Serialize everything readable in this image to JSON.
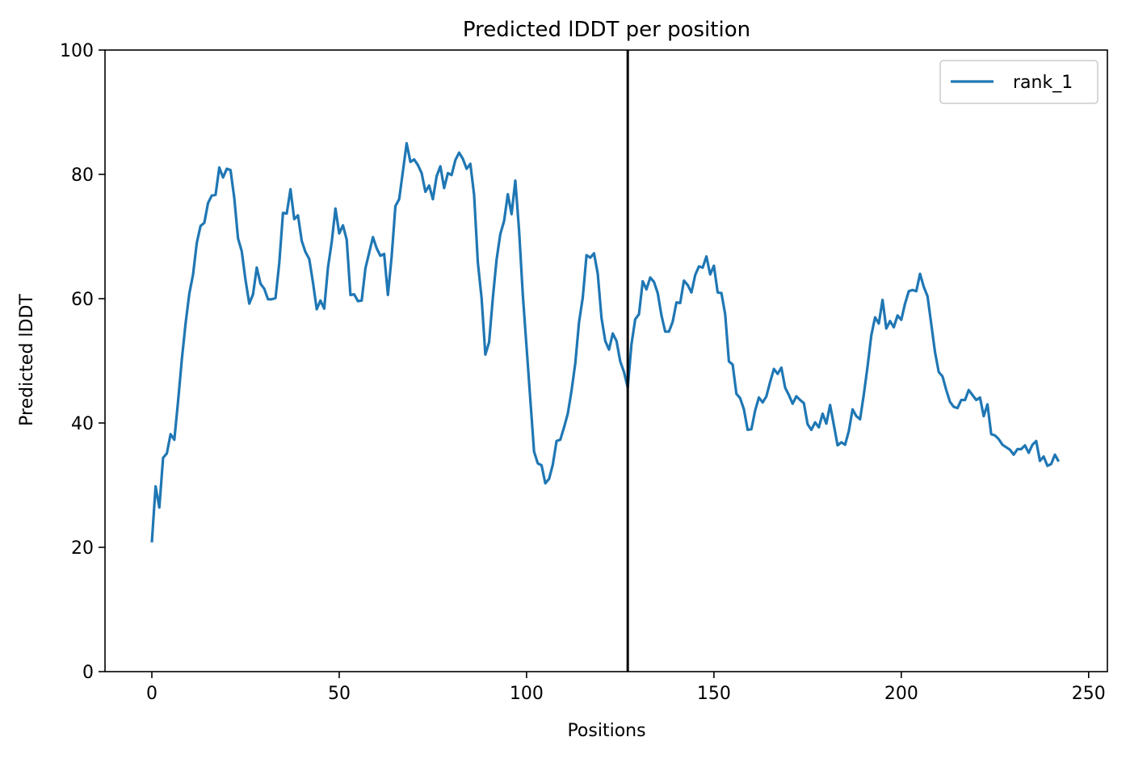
{
  "chart_data": {
    "type": "line",
    "title": "Predicted lDDT per position",
    "xlabel": "Positions",
    "ylabel": "Predicted lDDT",
    "xlim": [
      -12.5,
      255
    ],
    "ylim": [
      0,
      100
    ],
    "xticks": [
      0,
      50,
      100,
      150,
      200,
      250
    ],
    "yticks": [
      0,
      20,
      40,
      60,
      80,
      100
    ],
    "grid": false,
    "legend_position": "top-right",
    "vline": {
      "x": 127,
      "color": "#000000"
    },
    "series": [
      {
        "name": "rank_1",
        "color": "#1f77b4",
        "x_start": 0,
        "values": [
          20.8,
          29.8,
          26.4,
          34.4,
          35.1,
          38.2,
          37.3,
          43.5,
          50.2,
          56,
          60.8,
          63.9,
          69,
          71.7,
          72.2,
          75.4,
          76.6,
          76.7,
          81.1,
          79.5,
          80.9,
          80.7,
          76.2,
          69.7,
          67.6,
          63,
          59.2,
          60.7,
          65,
          62.4,
          61.6,
          59.9,
          59.9,
          60.1,
          65.7,
          73.8,
          73.7,
          77.6,
          72.8,
          73.4,
          69.3,
          67.5,
          66.4,
          62.6,
          58.3,
          59.7,
          58.4,
          65,
          69.1,
          74.5,
          70.5,
          71.8,
          69.5,
          60.6,
          60.7,
          59.6,
          59.7,
          64.9,
          67.4,
          69.9,
          68.1,
          66.9,
          67.2,
          60.6,
          66.8,
          74.9,
          76,
          80.5,
          85,
          82,
          82.4,
          81.5,
          80.2,
          77.2,
          78.2,
          76,
          79.7,
          81.3,
          77.8,
          80.2,
          79.9,
          82.3,
          83.5,
          82.5,
          80.9,
          81.7,
          76.7,
          65.8,
          60.1,
          51,
          53,
          60.1,
          66.3,
          70.4,
          72.5,
          76.8,
          73.6,
          79,
          71,
          60.6,
          52.2,
          43.8,
          35.4,
          33.5,
          33.2,
          30.3,
          31,
          33.3,
          37.1,
          37.3,
          39.3,
          41.5,
          45.2,
          49.6,
          56.2,
          60.2,
          67,
          66.6,
          67.3,
          64,
          56.9,
          53.2,
          51.8,
          54.4,
          53.2,
          49.9,
          48.2,
          45.7,
          52.7,
          56.7,
          57.5,
          62.8,
          61.5,
          63.4,
          62.7,
          60.9,
          57.3,
          54.7,
          54.7,
          56.3,
          59.4,
          59.3,
          62.9,
          62.2,
          61,
          63.8,
          65.2,
          65,
          66.8,
          63.9,
          65.3,
          61,
          60.9,
          57.5,
          49.9,
          49.4,
          44.7,
          44,
          42.2,
          38.9,
          39,
          42,
          44.1,
          43.3,
          44.3,
          46.6,
          48.7,
          47.9,
          48.9,
          45.7,
          44.5,
          43.1,
          44.3,
          43.7,
          43.2,
          39.8,
          38.9,
          40.1,
          39.3,
          41.5,
          39.9,
          42.9,
          39.7,
          36.4,
          36.9,
          36.5,
          38.7,
          42.2,
          41.1,
          40.6,
          44.6,
          49.1,
          54.1,
          57,
          56,
          59.8,
          55.2,
          56.4,
          55.4,
          57.3,
          56.6,
          59.2,
          61.2,
          61.4,
          61.2,
          64,
          61.9,
          60.4,
          55.9,
          51.4,
          48.2,
          47.5,
          45.3,
          43.4,
          42.6,
          42.4,
          43.7,
          43.7,
          45.3,
          44.5,
          43.7,
          44.1,
          41.1,
          43,
          38.2,
          38,
          37.4,
          36.5,
          36.1,
          35.7,
          34.9,
          35.8,
          35.8,
          36.4,
          35.2,
          36.5,
          37.1,
          33.9,
          34.6,
          33.1,
          33.4,
          34.9,
          33.8
        ]
      }
    ]
  }
}
